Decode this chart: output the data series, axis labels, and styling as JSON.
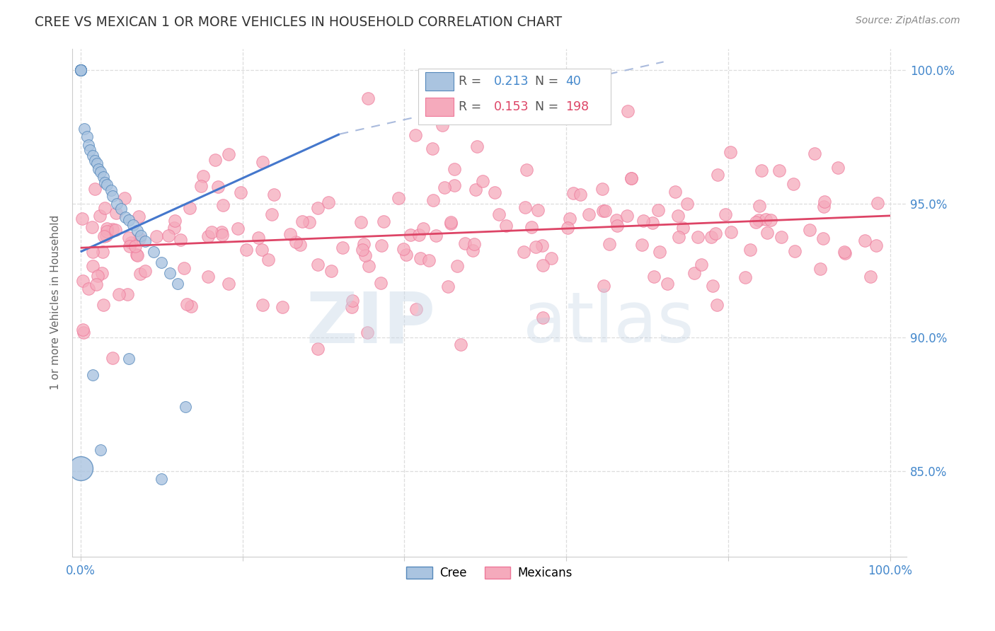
{
  "title": "CREE VS MEXICAN 1 OR MORE VEHICLES IN HOUSEHOLD CORRELATION CHART",
  "source_text": "Source: ZipAtlas.com",
  "ylabel": "1 or more Vehicles in Household",
  "watermark_zip": "ZIP",
  "watermark_atlas": "atlas",
  "cree_R": 0.213,
  "cree_N": 40,
  "mexican_R": 0.153,
  "mexican_N": 198,
  "xlim": [
    -0.01,
    1.02
  ],
  "ylim": [
    0.818,
    1.008
  ],
  "yticks": [
    0.85,
    0.9,
    0.95,
    1.0
  ],
  "ytick_labels": [
    "85.0%",
    "90.0%",
    "95.0%",
    "100.0%"
  ],
  "xticks": [
    0.0,
    0.2,
    0.4,
    0.6,
    0.8,
    1.0
  ],
  "xtick_labels": [
    "0.0%",
    "",
    "",
    "",
    "",
    "100.0%"
  ],
  "background_color": "#ffffff",
  "cree_color": "#aac4e0",
  "mexican_color": "#f5aabc",
  "cree_edge": "#5588bb",
  "mexican_edge": "#ee7799",
  "trend_cree_color": "#4477cc",
  "trend_cree_dash_color": "#aabbdd",
  "trend_mexican_color": "#dd4466",
  "label_color": "#4488cc",
  "grid_color": "#dddddd",
  "cree_x": [
    0.0,
    0.0,
    0.0,
    0.0,
    0.0,
    0.0,
    0.0,
    0.0,
    0.005,
    0.008,
    0.01,
    0.012,
    0.015,
    0.018,
    0.02,
    0.022,
    0.025,
    0.028,
    0.03,
    0.033,
    0.038,
    0.04,
    0.045,
    0.05,
    0.055,
    0.06,
    0.065,
    0.07,
    0.075,
    0.08,
    0.09,
    0.1,
    0.11,
    0.12,
    0.015,
    0.025,
    0.06,
    0.1,
    0.13,
    0.0
  ],
  "cree_y": [
    1.0,
    1.0,
    1.0,
    1.0,
    1.0,
    1.0,
    1.0,
    1.0,
    0.978,
    0.975,
    0.972,
    0.97,
    0.968,
    0.966,
    0.965,
    0.963,
    0.962,
    0.96,
    0.958,
    0.957,
    0.955,
    0.953,
    0.95,
    0.948,
    0.945,
    0.944,
    0.942,
    0.94,
    0.938,
    0.936,
    0.932,
    0.928,
    0.924,
    0.92,
    0.886,
    0.858,
    0.892,
    0.847,
    0.874,
    0.851
  ],
  "cree_sizes": [
    20,
    20,
    20,
    20,
    20,
    20,
    20,
    20,
    18,
    18,
    18,
    18,
    18,
    18,
    18,
    18,
    18,
    18,
    18,
    18,
    18,
    18,
    18,
    18,
    18,
    18,
    18,
    18,
    18,
    18,
    18,
    18,
    18,
    18,
    18,
    18,
    18,
    18,
    18,
    120
  ],
  "cree_trend_x0": 0.0,
  "cree_trend_y0": 0.932,
  "cree_trend_x1": 0.32,
  "cree_trend_y1": 0.976,
  "cree_trend_dash_x1": 0.72,
  "cree_trend_dash_y1": 1.003,
  "mexican_trend_x0": 0.0,
  "mexican_trend_y0": 0.9335,
  "mexican_trend_x1": 1.0,
  "mexican_trend_y1": 0.9455
}
